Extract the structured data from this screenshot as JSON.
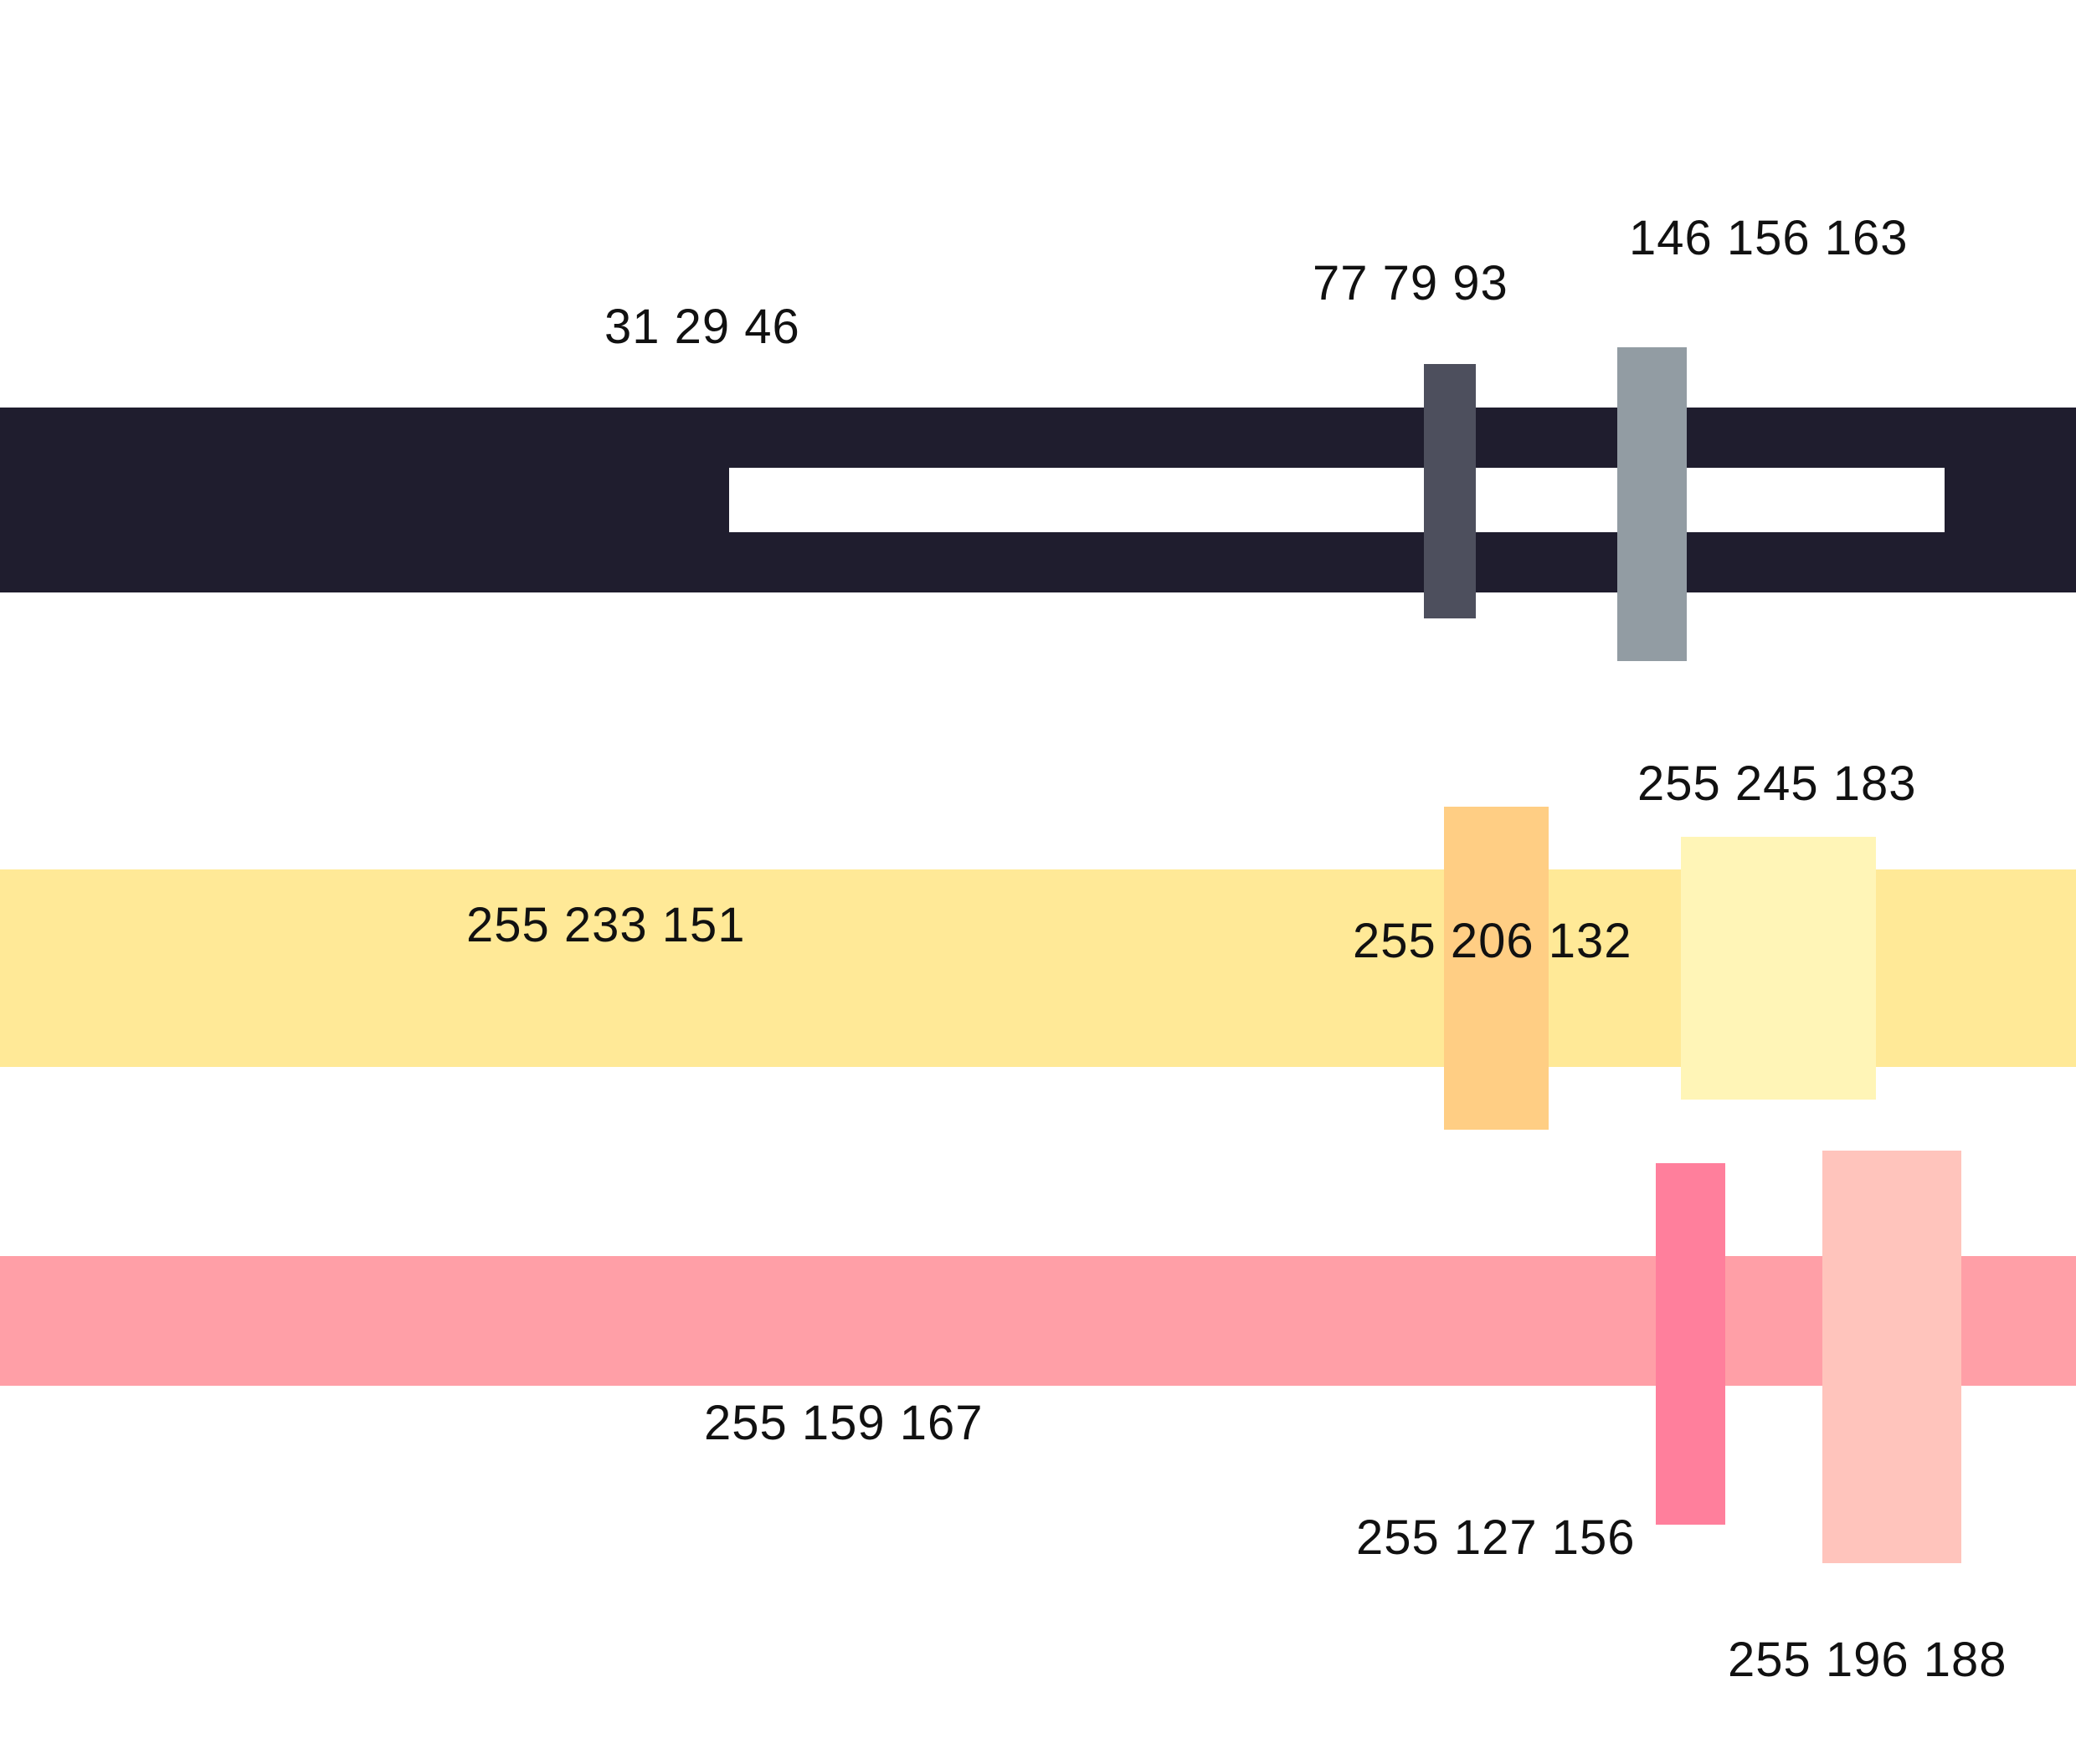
{
  "colors": {
    "dark_main": "#1F1D2E",
    "dark_1": "#4D4F5D",
    "dark_2": "#929CA3",
    "white_strip": "#FFFFFF",
    "yellow_main": "#FFE997",
    "yellow_1": "#FFCE84",
    "yellow_2": "#FFF5B7",
    "pink_main": "#FF9FA7",
    "pink_1": "#FF7F9C",
    "pink_2": "#FFC4BC"
  },
  "labels": {
    "dark_main": "31 29 46",
    "dark_1": "77 79 93",
    "dark_2": "146 156 163",
    "yellow_main": "255 233 151",
    "yellow_1": "255 206 132",
    "yellow_2": "255 245 183",
    "pink_main": "255 159 167",
    "pink_1": "255 127 156",
    "pink_2": "255 196 188"
  }
}
